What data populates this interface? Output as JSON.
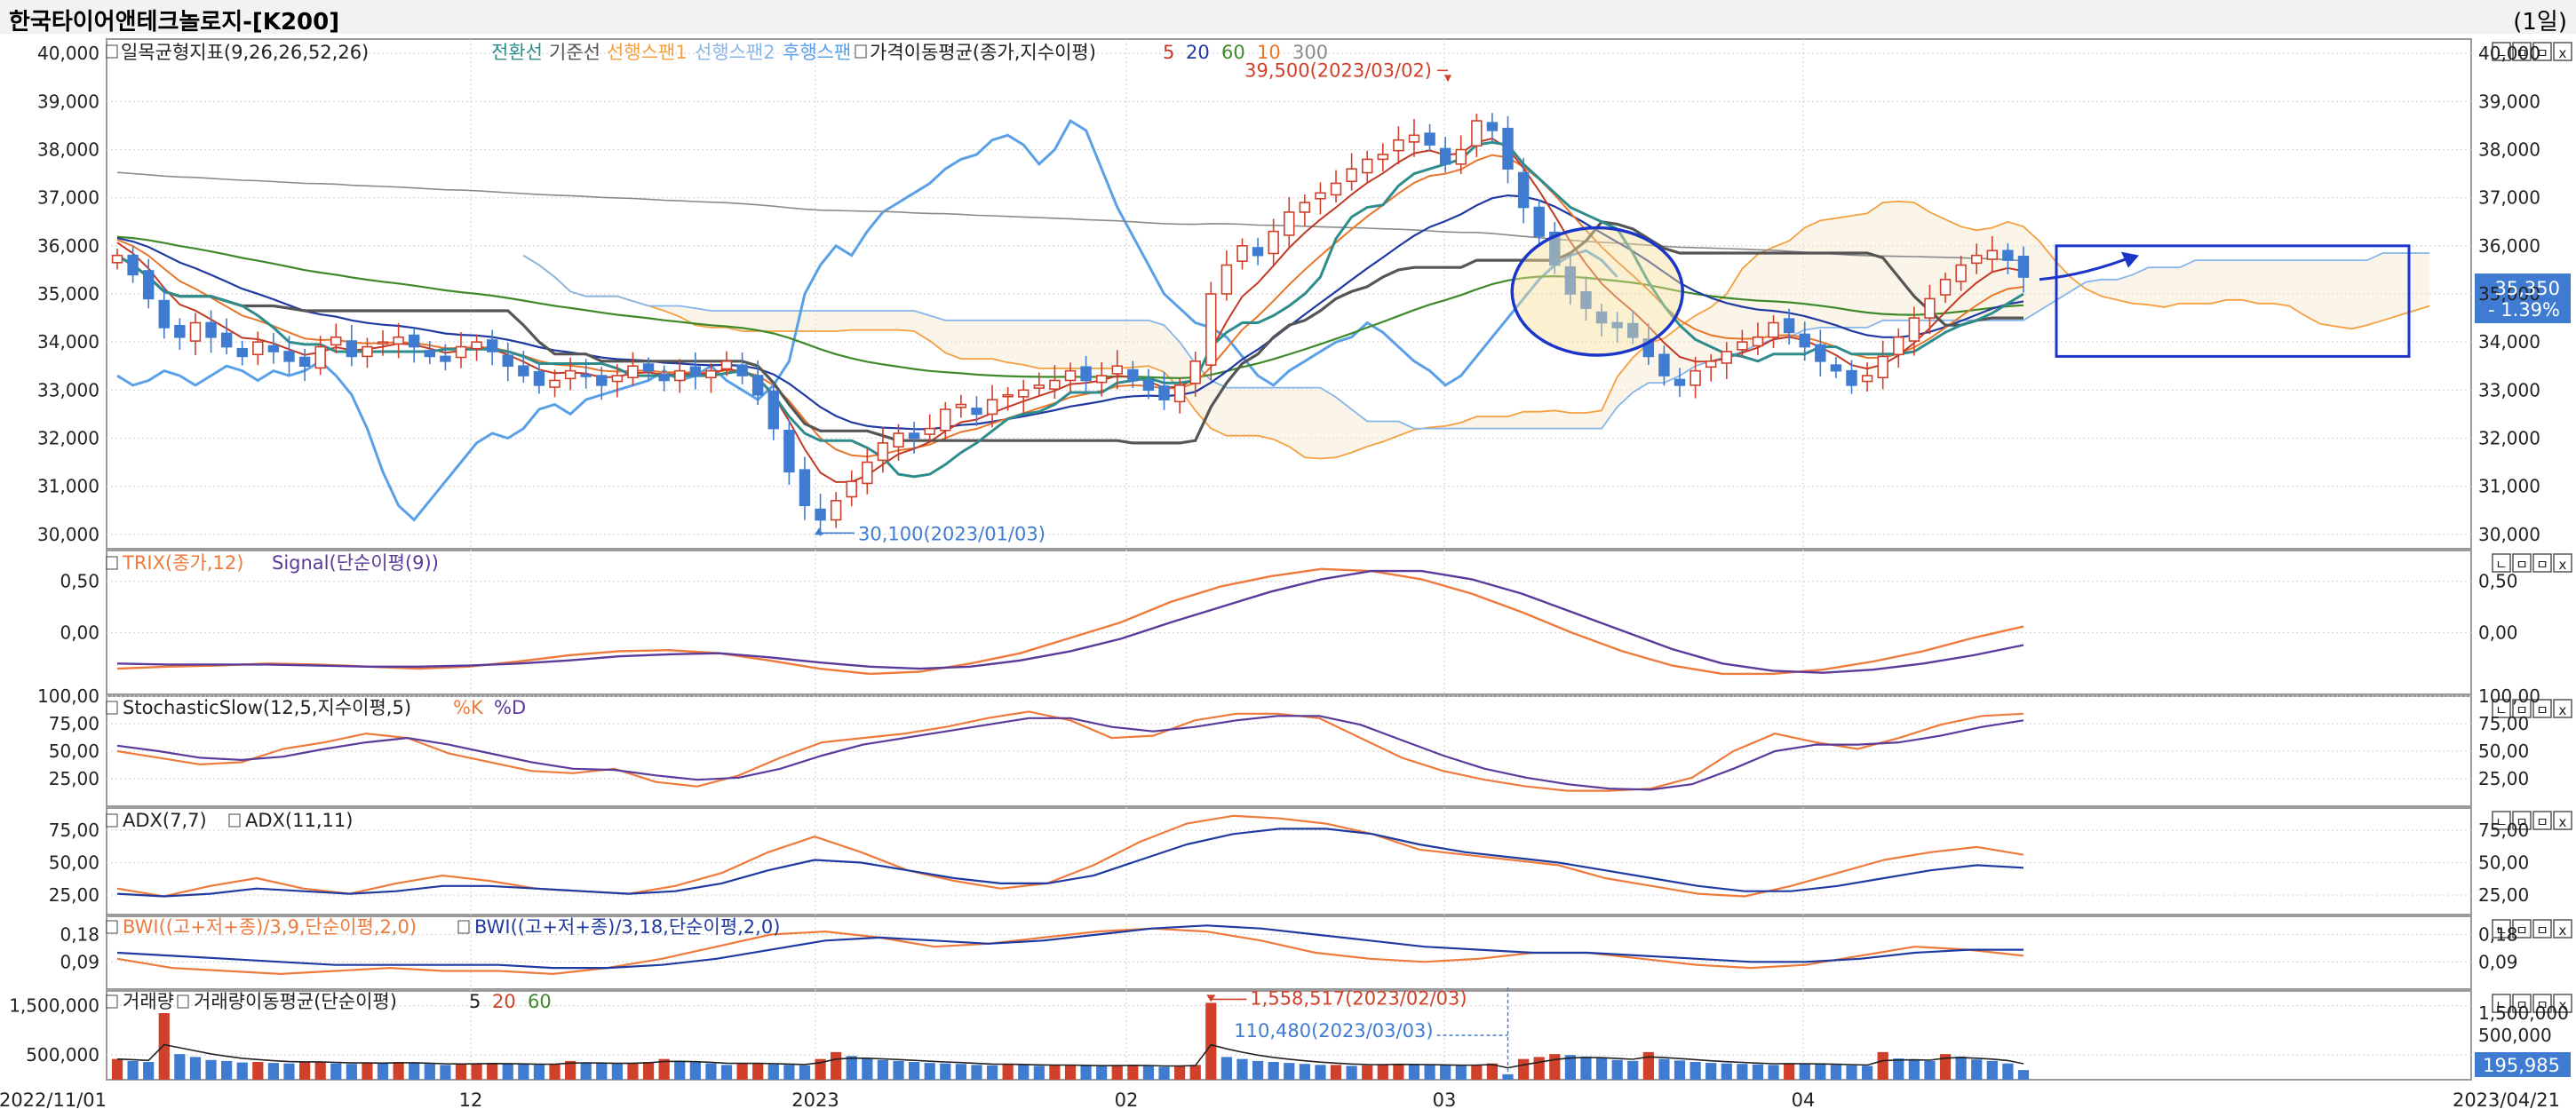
{
  "window": {
    "title": "한국타이어앤테크놀로지-[K200]",
    "period": "(1일)"
  },
  "colors": {
    "up": "#d0402a",
    "down": "#3f7cd1",
    "tenkan": "#2f8c8c",
    "kijun": "#555555",
    "spanA": "#f4a040",
    "spanB": "#86b6ea",
    "lagging": "#5aa0e6",
    "ma5": "#c23a25",
    "ma20": "#1f3aa0",
    "ma60": "#3e8a2a",
    "ma10": "#e8762a",
    "ma300": "#8a8a8a",
    "trix": "#ee7a3c",
    "signal": "#5a3a9a",
    "highlight": "#1a35c8",
    "grid": "#d6d6d6",
    "price_badge": "#3f7cd1"
  },
  "header": {
    "period_label": "(1일)"
  },
  "panels": {
    "price": {
      "legend": {
        "ichimoku": "일목균형지표(9,26,26,52,26)",
        "tenkan": "전환선",
        "kijun": "기준선",
        "spanA": "선행스팬1",
        "spanB": "선행스팬2",
        "lagging": "후행스팬",
        "ma": "가격이동평균(종가,지수이평)",
        "ma_periods": [
          "5",
          "20",
          "60",
          "10",
          "300"
        ]
      },
      "yticks": [
        "40,000",
        "39,000",
        "38,000",
        "37,000",
        "36,000",
        "35,000",
        "34,000",
        "33,000",
        "32,000",
        "31,000",
        "30,000"
      ],
      "ylim": [
        29700,
        40300
      ],
      "high_annotation": "39,500(2023/03/02)",
      "low_annotation": "30,100(2023/01/03)",
      "last_price": "35,350",
      "change": "- 1.39%"
    },
    "trix": {
      "legend_a": "TRIX(종가,12)",
      "legend_b": "Signal(단순이평(9))",
      "yticks": [
        "0,50",
        "0,00"
      ]
    },
    "stoch": {
      "legend_a": "StochasticSlow(12,5,지수이평,5)",
      "legend_b": "%K",
      "legend_c": "%D",
      "yticks": [
        "100,00",
        "75,00",
        "50,00",
        "25,00"
      ]
    },
    "adx": {
      "legend_a": "ADX(7,7)",
      "legend_b": "ADX(11,11)",
      "yticks": [
        "75,00",
        "50,00",
        "25,00"
      ]
    },
    "bwi": {
      "legend_a": "BWI((고+저+종)/3,9,단순이평,2,0)",
      "legend_b": "BWI((고+저+종)/3,18,단순이평,2,0)",
      "yticks": [
        "0,18",
        "0,09"
      ]
    },
    "volume": {
      "legend_a": "거래량",
      "legend_b": "거래량이동평균(단순이평)",
      "legend_periods": [
        "5",
        "20",
        "60"
      ],
      "yticks": [
        "1,500,000",
        "500,000"
      ],
      "right_ticks": [
        "1,500,000",
        "500,000"
      ],
      "peak_annotation": "1,558,517(2023/02/03)",
      "cursor_annotation": "110,480(2023/03/03)",
      "last_volume": "195,985"
    }
  },
  "xaxis": {
    "ticks": [
      "2022/11/01",
      "12",
      "2023",
      "02",
      "03",
      "04",
      "2023/04/21"
    ]
  },
  "panel_buttons": [
    "ㄴ",
    "ㅁ",
    "ㅁ",
    "x"
  ],
  "chart_data": [
    {
      "type": "candlestick",
      "title": "일목균형지표(9,26,26,52,26) / 가격이동평균(종가,지수이평)",
      "x_range": [
        "2022/11/01",
        "2023/04/21"
      ],
      "ylim": [
        29700,
        40300
      ],
      "high": {
        "value": 39500,
        "date": "2023/03/02"
      },
      "low": {
        "value": 30100,
        "date": "2023/01/03"
      },
      "last_close": 35350,
      "change_pct": -1.39,
      "close_series": [
        35800,
        35400,
        34900,
        34300,
        34100,
        34400,
        34100,
        33900,
        33700,
        34000,
        33800,
        33600,
        33500,
        33900,
        34100,
        33700,
        33900,
        34000,
        34100,
        33900,
        33700,
        33600,
        33900,
        34000,
        33800,
        33500,
        33300,
        33100,
        33200,
        33400,
        33300,
        33100,
        33300,
        33500,
        33400,
        33200,
        33400,
        33300,
        33400,
        33600,
        33300,
        32900,
        32200,
        31300,
        30600,
        30300,
        30700,
        31100,
        31500,
        31900,
        32100,
        32000,
        32200,
        32600,
        32700,
        32500,
        32800,
        32900,
        33000,
        33100,
        33200,
        33400,
        33200,
        33300,
        33500,
        33200,
        33000,
        32800,
        33100,
        33600,
        35000,
        35600,
        36000,
        35800,
        36300,
        36700,
        36900,
        37100,
        37300,
        37600,
        37800,
        37900,
        38200,
        38300,
        38100,
        37700,
        38000,
        38600,
        38400,
        37600,
        36800,
        36200,
        35600,
        35000,
        34700,
        34400,
        34300,
        34100,
        33700,
        33300,
        33100,
        33400,
        33600,
        33800,
        34000,
        34100,
        34400,
        34200,
        33900,
        33600,
        33400,
        33100,
        33300,
        33700,
        34100,
        34500,
        34900,
        35300,
        35600,
        35800,
        35900,
        35700,
        35350
      ],
      "ma_series": [
        {
          "name": "5"
        },
        {
          "name": "20"
        },
        {
          "name": "60"
        },
        {
          "name": "10"
        },
        {
          "name": "300"
        }
      ],
      "ichimoku_series": [
        {
          "name": "전환선"
        },
        {
          "name": "기준선"
        },
        {
          "name": "선행스팬1"
        },
        {
          "name": "선행스팬2"
        },
        {
          "name": "후행스팬"
        }
      ]
    },
    {
      "type": "line",
      "title": "TRIX(종가,12)",
      "series": [
        {
          "name": "TRIX(종가,12)",
          "values": [
            -0.35,
            -0.33,
            -0.32,
            -0.3,
            -0.31,
            -0.33,
            -0.35,
            -0.33,
            -0.28,
            -0.22,
            -0.18,
            -0.17,
            -0.2,
            -0.27,
            -0.35,
            -0.4,
            -0.38,
            -0.3,
            -0.2,
            -0.05,
            0.1,
            0.3,
            0.45,
            0.55,
            0.62,
            0.6,
            0.52,
            0.38,
            0.2,
            0.0,
            -0.18,
            -0.32,
            -0.4,
            -0.4,
            -0.36,
            -0.28,
            -0.18,
            -0.05,
            0.06
          ]
        },
        {
          "name": "Signal(단순이평(9))",
          "values": [
            -0.3,
            -0.31,
            -0.31,
            -0.31,
            -0.32,
            -0.33,
            -0.33,
            -0.32,
            -0.3,
            -0.27,
            -0.23,
            -0.21,
            -0.2,
            -0.24,
            -0.29,
            -0.33,
            -0.35,
            -0.33,
            -0.27,
            -0.18,
            -0.06,
            0.1,
            0.25,
            0.4,
            0.52,
            0.6,
            0.6,
            0.52,
            0.38,
            0.2,
            0.02,
            -0.16,
            -0.3,
            -0.37,
            -0.39,
            -0.36,
            -0.3,
            -0.22,
            -0.12
          ]
        }
      ],
      "ylim": [
        -0.6,
        0.8
      ]
    },
    {
      "type": "line",
      "title": "StochasticSlow(12,5,지수이평,5)",
      "series": [
        {
          "name": "%K",
          "values": [
            50,
            44,
            38,
            40,
            52,
            58,
            66,
            62,
            48,
            40,
            32,
            30,
            34,
            22,
            18,
            28,
            44,
            58,
            62,
            66,
            72,
            80,
            86,
            78,
            62,
            64,
            78,
            84,
            84,
            80,
            62,
            44,
            32,
            24,
            18,
            14,
            14,
            16,
            26,
            50,
            66,
            58,
            52,
            62,
            74,
            82,
            84
          ]
        },
        {
          "name": "%D",
          "values": [
            55,
            50,
            44,
            42,
            45,
            52,
            58,
            62,
            56,
            48,
            40,
            34,
            33,
            28,
            24,
            26,
            34,
            46,
            56,
            62,
            68,
            74,
            80,
            80,
            72,
            68,
            72,
            78,
            82,
            82,
            74,
            60,
            46,
            34,
            26,
            20,
            16,
            15,
            20,
            34,
            50,
            56,
            56,
            58,
            64,
            72,
            78
          ]
        }
      ],
      "ylim": [
        0,
        100
      ]
    },
    {
      "type": "line",
      "title": "ADX",
      "series": [
        {
          "name": "ADX(7,7)",
          "values": [
            30,
            24,
            32,
            38,
            30,
            26,
            34,
            40,
            36,
            30,
            28,
            26,
            32,
            42,
            58,
            70,
            58,
            44,
            36,
            30,
            34,
            48,
            66,
            80,
            86,
            84,
            80,
            72,
            60,
            56,
            52,
            48,
            38,
            32,
            26,
            24,
            32,
            42,
            52,
            58,
            62,
            56
          ]
        },
        {
          "name": "ADX(11,11)",
          "values": [
            26,
            24,
            26,
            30,
            28,
            26,
            28,
            32,
            32,
            30,
            28,
            26,
            28,
            34,
            44,
            52,
            50,
            44,
            38,
            34,
            34,
            40,
            52,
            64,
            72,
            76,
            76,
            72,
            64,
            58,
            54,
            50,
            44,
            38,
            32,
            28,
            28,
            32,
            38,
            44,
            48,
            46
          ]
        }
      ],
      "ylim": [
        10,
        92
      ]
    },
    {
      "type": "line",
      "title": "BWI",
      "series": [
        {
          "name": "BWI((고+저+종)/3,9,단순이평,2,0)",
          "values": [
            0.1,
            0.07,
            0.06,
            0.05,
            0.06,
            0.07,
            0.06,
            0.06,
            0.05,
            0.07,
            0.1,
            0.14,
            0.18,
            0.19,
            0.17,
            0.14,
            0.15,
            0.17,
            0.19,
            0.2,
            0.19,
            0.16,
            0.12,
            0.1,
            0.09,
            0.1,
            0.12,
            0.12,
            0.1,
            0.08,
            0.07,
            0.08,
            0.11,
            0.14,
            0.13,
            0.11
          ]
        },
        {
          "name": "BWI((고+저+종)/3,18,단순이평,2,0)",
          "values": [
            0.12,
            0.11,
            0.1,
            0.09,
            0.08,
            0.08,
            0.08,
            0.08,
            0.07,
            0.07,
            0.08,
            0.1,
            0.13,
            0.16,
            0.17,
            0.16,
            0.15,
            0.16,
            0.18,
            0.2,
            0.21,
            0.2,
            0.18,
            0.16,
            0.14,
            0.13,
            0.12,
            0.12,
            0.11,
            0.1,
            0.09,
            0.09,
            0.1,
            0.12,
            0.13,
            0.13
          ]
        }
      ],
      "ylim": [
        0.0,
        0.24
      ]
    },
    {
      "type": "bar",
      "title": "거래량",
      "peak": {
        "value": 1558517,
        "date": "2023/02/03"
      },
      "marked": {
        "value": 110480,
        "date": "2023/03/03"
      },
      "last": 195985,
      "values": [
        420000,
        380000,
        360000,
        1350000,
        520000,
        460000,
        400000,
        380000,
        350000,
        360000,
        340000,
        330000,
        350000,
        360000,
        330000,
        320000,
        340000,
        330000,
        360000,
        340000,
        320000,
        300000,
        310000,
        330000,
        340000,
        320000,
        310000,
        300000,
        320000,
        380000,
        350000,
        330000,
        320000,
        340000,
        360000,
        420000,
        380000,
        350000,
        330000,
        300000,
        320000,
        340000,
        310000,
        300000,
        290000,
        420000,
        560000,
        480000,
        430000,
        400000,
        380000,
        360000,
        340000,
        330000,
        320000,
        300000,
        290000,
        310000,
        300000,
        280000,
        290000,
        300000,
        280000,
        270000,
        290000,
        300000,
        280000,
        260000,
        280000,
        300000,
        1558517,
        460000,
        420000,
        380000,
        360000,
        340000,
        320000,
        300000,
        300000,
        280000,
        290000,
        300000,
        320000,
        310000,
        300000,
        290000,
        280000,
        300000,
        330000,
        110480,
        420000,
        460000,
        520000,
        500000,
        470000,
        440000,
        400000,
        380000,
        560000,
        420000,
        390000,
        360000,
        340000,
        330000,
        320000,
        310000,
        300000,
        330000,
        320000,
        310000,
        300000,
        290000,
        280000,
        560000,
        430000,
        410000,
        380000,
        520000,
        470000,
        410000,
        380000,
        330000,
        195985
      ],
      "ylim": [
        0,
        1800000
      ]
    }
  ]
}
